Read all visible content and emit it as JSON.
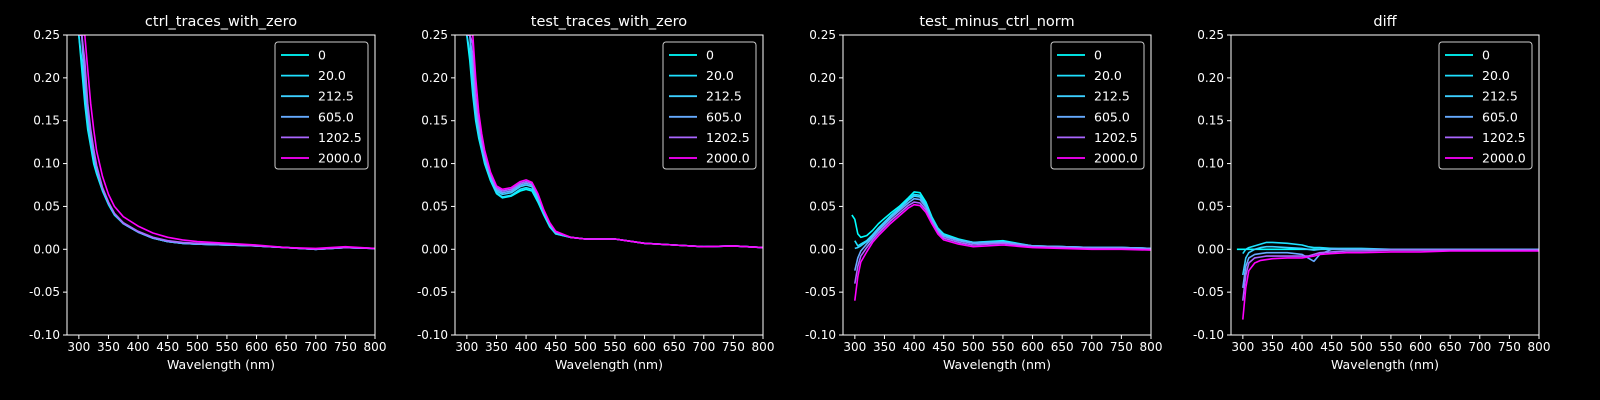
{
  "figure": {
    "background": "#000000",
    "foreground": "#ffffff"
  },
  "legend": {
    "labels": [
      "0",
      "20.0",
      "212.5",
      "605.0",
      "1202.5",
      "2000.0"
    ],
    "colors": [
      "#00ffff",
      "#1ee1ff",
      "#3ccfff",
      "#66aaff",
      "#aa66ff",
      "#ff00ff"
    ],
    "position": "upper right"
  },
  "chart_data": [
    {
      "type": "line",
      "title": "ctrl_traces_with_zero",
      "xlabel": "Wavelength (nm)",
      "ylabel": "",
      "xlim": [
        280,
        800
      ],
      "ylim": [
        -0.1,
        0.25
      ],
      "xticks": [
        300,
        350,
        400,
        450,
        500,
        550,
        600,
        650,
        700,
        750,
        800
      ],
      "yticks": [
        "-0.10",
        "-0.05",
        "0.00",
        "0.05",
        "0.10",
        "0.15",
        "0.20",
        "0.25"
      ],
      "x": [
        300,
        305,
        310,
        315,
        320,
        325,
        330,
        340,
        350,
        360,
        375,
        400,
        425,
        450,
        475,
        500,
        550,
        600,
        650,
        700,
        750,
        800
      ],
      "series": [
        {
          "name": "0",
          "values": [
            0.25,
            0.21,
            0.17,
            0.14,
            0.12,
            0.1,
            0.088,
            0.068,
            0.052,
            0.04,
            0.03,
            0.02,
            0.013,
            0.009,
            0.007,
            0.006,
            0.005,
            0.004,
            0.002,
            0.0,
            0.002,
            0.001
          ]
        },
        {
          "name": "20.0",
          "values": [
            0.25,
            0.22,
            0.175,
            0.145,
            0.122,
            0.105,
            0.09,
            0.069,
            0.053,
            0.041,
            0.03,
            0.02,
            0.013,
            0.009,
            0.007,
            0.006,
            0.005,
            0.004,
            0.002,
            0.0,
            0.002,
            0.001
          ]
        },
        {
          "name": "212.5",
          "values": [
            0.25,
            0.25,
            0.19,
            0.155,
            0.128,
            0.108,
            0.093,
            0.07,
            0.054,
            0.041,
            0.03,
            0.02,
            0.013,
            0.009,
            0.007,
            0.006,
            0.005,
            0.004,
            0.002,
            0.0,
            0.002,
            0.001
          ]
        },
        {
          "name": "605.0",
          "values": [
            0.25,
            0.25,
            0.2,
            0.16,
            0.133,
            0.112,
            0.095,
            0.071,
            0.054,
            0.041,
            0.03,
            0.02,
            0.013,
            0.009,
            0.007,
            0.006,
            0.005,
            0.004,
            0.002,
            0.0,
            0.002,
            0.001
          ]
        },
        {
          "name": "1202.5",
          "values": [
            0.25,
            0.25,
            0.22,
            0.17,
            0.14,
            0.117,
            0.098,
            0.072,
            0.055,
            0.042,
            0.031,
            0.021,
            0.014,
            0.01,
            0.008,
            0.007,
            0.006,
            0.004,
            0.002,
            0.0,
            0.002,
            0.001
          ]
        },
        {
          "name": "2000.0",
          "values": [
            0.25,
            0.25,
            0.25,
            0.21,
            0.17,
            0.14,
            0.115,
            0.085,
            0.064,
            0.05,
            0.038,
            0.027,
            0.019,
            0.014,
            0.011,
            0.009,
            0.007,
            0.005,
            0.002,
            0.001,
            0.003,
            0.001
          ]
        }
      ]
    },
    {
      "type": "line",
      "title": "test_traces_with_zero",
      "xlabel": "Wavelength (nm)",
      "ylabel": "",
      "xlim": [
        280,
        800
      ],
      "ylim": [
        -0.1,
        0.25
      ],
      "xticks": [
        300,
        350,
        400,
        450,
        500,
        550,
        600,
        650,
        700,
        750,
        800
      ],
      "yticks": [
        "-0.10",
        "-0.05",
        "0.00",
        "0.05",
        "0.10",
        "0.15",
        "0.20",
        "0.25"
      ],
      "x": [
        300,
        305,
        310,
        315,
        320,
        325,
        330,
        340,
        350,
        360,
        375,
        390,
        400,
        410,
        420,
        430,
        440,
        450,
        475,
        500,
        550,
        600,
        650,
        700,
        750,
        800
      ],
      "series": [
        {
          "name": "0",
          "values": [
            0.25,
            0.22,
            0.18,
            0.15,
            0.13,
            0.115,
            0.1,
            0.08,
            0.065,
            0.06,
            0.062,
            0.068,
            0.07,
            0.068,
            0.055,
            0.04,
            0.026,
            0.018,
            0.014,
            0.012,
            0.012,
            0.007,
            0.005,
            0.003,
            0.004,
            0.002
          ]
        },
        {
          "name": "20.0",
          "values": [
            0.25,
            0.23,
            0.185,
            0.155,
            0.133,
            0.117,
            0.102,
            0.082,
            0.066,
            0.061,
            0.063,
            0.07,
            0.072,
            0.07,
            0.057,
            0.041,
            0.027,
            0.018,
            0.014,
            0.012,
            0.012,
            0.007,
            0.005,
            0.003,
            0.004,
            0.002
          ]
        },
        {
          "name": "212.5",
          "values": [
            0.25,
            0.25,
            0.2,
            0.16,
            0.138,
            0.12,
            0.105,
            0.084,
            0.068,
            0.064,
            0.066,
            0.073,
            0.075,
            0.073,
            0.06,
            0.043,
            0.028,
            0.019,
            0.014,
            0.012,
            0.012,
            0.007,
            0.005,
            0.003,
            0.004,
            0.002
          ]
        },
        {
          "name": "605.0",
          "values": [
            0.25,
            0.25,
            0.22,
            0.17,
            0.143,
            0.124,
            0.108,
            0.086,
            0.07,
            0.066,
            0.068,
            0.075,
            0.077,
            0.075,
            0.062,
            0.044,
            0.029,
            0.02,
            0.014,
            0.012,
            0.012,
            0.007,
            0.005,
            0.003,
            0.004,
            0.002
          ]
        },
        {
          "name": "1202.5",
          "values": [
            0.25,
            0.25,
            0.24,
            0.18,
            0.15,
            0.128,
            0.111,
            0.088,
            0.072,
            0.068,
            0.07,
            0.077,
            0.079,
            0.077,
            0.064,
            0.045,
            0.03,
            0.02,
            0.014,
            0.012,
            0.012,
            0.007,
            0.005,
            0.003,
            0.004,
            0.002
          ]
        },
        {
          "name": "2000.0",
          "values": [
            0.25,
            0.25,
            0.25,
            0.2,
            0.16,
            0.135,
            0.116,
            0.09,
            0.074,
            0.07,
            0.072,
            0.079,
            0.081,
            0.078,
            0.065,
            0.046,
            0.031,
            0.021,
            0.014,
            0.012,
            0.012,
            0.007,
            0.005,
            0.003,
            0.004,
            0.002
          ]
        }
      ]
    },
    {
      "type": "line",
      "title": "test_minus_ctrl_norm",
      "xlabel": "Wavelength (nm)",
      "ylabel": "",
      "xlim": [
        280,
        800
      ],
      "ylim": [
        -0.1,
        0.25
      ],
      "xticks": [
        300,
        350,
        400,
        450,
        500,
        550,
        600,
        650,
        700,
        750,
        800
      ],
      "yticks": [
        "-0.10",
        "-0.05",
        "0.00",
        "0.05",
        "0.10",
        "0.15",
        "0.20",
        "0.25"
      ],
      "x": [
        295,
        300,
        305,
        310,
        320,
        330,
        340,
        350,
        360,
        375,
        390,
        400,
        410,
        420,
        430,
        440,
        450,
        475,
        500,
        550,
        600,
        650,
        700,
        750,
        800
      ],
      "series": [
        {
          "name": "0",
          "values": [
            0.04,
            0.035,
            0.018,
            0.014,
            0.016,
            0.022,
            0.03,
            0.036,
            0.042,
            0.05,
            0.06,
            0.067,
            0.066,
            0.055,
            0.038,
            0.025,
            0.018,
            0.012,
            0.008,
            0.01,
            0.004,
            0.003,
            0.002,
            0.002,
            0.001
          ]
        },
        {
          "name": "20.0",
          "values": [
            null,
            0.01,
            0.004,
            0.006,
            0.01,
            0.017,
            0.025,
            0.032,
            0.039,
            0.048,
            0.058,
            0.064,
            0.063,
            0.053,
            0.036,
            0.024,
            0.017,
            0.011,
            0.008,
            0.009,
            0.004,
            0.003,
            0.002,
            0.002,
            0.001
          ]
        },
        {
          "name": "212.5",
          "values": [
            null,
            0.001,
            0.002,
            0.004,
            0.009,
            0.016,
            0.024,
            0.031,
            0.038,
            0.047,
            0.057,
            0.062,
            0.061,
            0.051,
            0.035,
            0.023,
            0.016,
            0.011,
            0.008,
            0.009,
            0.004,
            0.003,
            0.002,
            0.002,
            0.001
          ]
        },
        {
          "name": "605.0",
          "values": [
            null,
            -0.025,
            -0.01,
            -0.002,
            0.006,
            0.014,
            0.022,
            0.029,
            0.036,
            0.045,
            0.054,
            0.059,
            0.058,
            0.049,
            0.034,
            0.022,
            0.015,
            0.01,
            0.007,
            0.008,
            0.004,
            0.003,
            0.002,
            0.002,
            0.001
          ]
        },
        {
          "name": "1202.5",
          "values": [
            null,
            -0.04,
            -0.02,
            -0.008,
            0.002,
            0.011,
            0.019,
            0.026,
            0.033,
            0.042,
            0.051,
            0.055,
            0.054,
            0.046,
            0.032,
            0.02,
            0.013,
            0.008,
            0.005,
            0.007,
            0.003,
            0.002,
            0.001,
            0.001,
            0.0
          ]
        },
        {
          "name": "2000.0",
          "values": [
            null,
            -0.06,
            -0.032,
            -0.015,
            -0.003,
            0.008,
            0.016,
            0.023,
            0.03,
            0.039,
            0.048,
            0.052,
            0.051,
            0.043,
            0.03,
            0.018,
            0.011,
            0.006,
            0.003,
            0.005,
            0.002,
            0.001,
            0.0,
            0.0,
            -0.001
          ]
        }
      ]
    },
    {
      "type": "line",
      "title": "diff",
      "xlabel": "Wavelength (nm)",
      "ylabel": "",
      "xlim": [
        280,
        800
      ],
      "ylim": [
        -0.1,
        0.25
      ],
      "xticks": [
        300,
        350,
        400,
        450,
        500,
        550,
        600,
        650,
        700,
        750,
        800
      ],
      "yticks": [
        "-0.10",
        "-0.05",
        "0.00",
        "0.05",
        "0.10",
        "0.15",
        "0.20",
        "0.25"
      ],
      "x": [
        290,
        300,
        305,
        310,
        320,
        330,
        340,
        350,
        375,
        400,
        410,
        420,
        430,
        450,
        475,
        500,
        550,
        600,
        650,
        700,
        750,
        800
      ],
      "series": [
        {
          "name": "0",
          "values": [
            0.0,
            0.0,
            0.0,
            0.0,
            0.0,
            0.0,
            0.0,
            0.0,
            0.0,
            0.0,
            0.0,
            0.0,
            0.0,
            0.0,
            0.0,
            0.0,
            0.0,
            0.0,
            0.0,
            0.0,
            0.0,
            0.0
          ]
        },
        {
          "name": "20.0",
          "values": [
            null,
            -0.005,
            0.0,
            0.002,
            0.004,
            0.006,
            0.008,
            0.008,
            0.007,
            0.005,
            0.003,
            0.002,
            0.002,
            0.001,
            0.001,
            0.001,
            0.0,
            0.0,
            0.0,
            0.0,
            0.0,
            0.0
          ]
        },
        {
          "name": "212.5",
          "values": [
            null,
            -0.03,
            -0.01,
            -0.004,
            0.0,
            0.002,
            0.003,
            0.003,
            0.002,
            0.001,
            0.0,
            -0.001,
            0.0,
            0.001,
            0.0,
            0.0,
            0.0,
            0.0,
            0.0,
            0.0,
            0.0,
            0.0
          ]
        },
        {
          "name": "605.0",
          "values": [
            null,
            -0.045,
            -0.02,
            -0.01,
            -0.006,
            -0.005,
            -0.004,
            -0.004,
            -0.004,
            -0.006,
            -0.01,
            -0.014,
            -0.006,
            0.0,
            0.0,
            0.0,
            0.0,
            0.0,
            0.0,
            0.0,
            0.0,
            0.0
          ]
        },
        {
          "name": "1202.5",
          "values": [
            null,
            -0.06,
            -0.03,
            -0.016,
            -0.01,
            -0.009,
            -0.008,
            -0.008,
            -0.008,
            -0.008,
            -0.008,
            -0.006,
            -0.004,
            -0.003,
            -0.002,
            -0.002,
            -0.001,
            -0.001,
            -0.001,
            -0.001,
            -0.001,
            -0.001
          ]
        },
        {
          "name": "2000.0",
          "values": [
            null,
            -0.082,
            -0.045,
            -0.025,
            -0.016,
            -0.013,
            -0.012,
            -0.011,
            -0.01,
            -0.01,
            -0.009,
            -0.008,
            -0.006,
            -0.005,
            -0.004,
            -0.004,
            -0.003,
            -0.003,
            -0.002,
            -0.002,
            -0.002,
            -0.002
          ]
        }
      ]
    }
  ]
}
